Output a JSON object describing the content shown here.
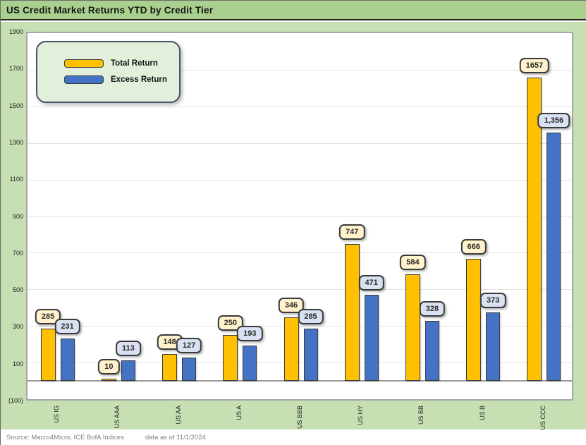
{
  "title": "US Credit Market Returns YTD by Credit Tier",
  "footer": {
    "source": "Source: Macro4Micro, ICE BofA Indices",
    "asof": "data as of 11/1/2024"
  },
  "colors": {
    "title_bar_green": "#A9D08E",
    "body_green": "#C6E0B4",
    "legend_bg": "#E2EFDA",
    "legend_border": "#44546A",
    "total_return_gold": "#FFC000",
    "excess_return_blue": "#4472C4",
    "gold_label_bg": "#FFF2CC",
    "blue_label_bg": "#D9E2F3",
    "plot_border_gray": "#A6A6A6"
  },
  "chart_data": {
    "type": "bar",
    "title": "US Credit Market Returns YTD by Credit Tier",
    "categories": [
      "US IG",
      "US AAA",
      "US AA",
      "US A",
      "US BBB",
      "US HY",
      "US BB",
      "US B",
      "US CCC"
    ],
    "series": [
      {
        "name": "Total Return",
        "color": "#FFC000",
        "label_bg": "#FFF2CC",
        "values": [
          285,
          10,
          148,
          250,
          346,
          747,
          584,
          666,
          1657
        ],
        "labels": [
          "285",
          "10",
          "148",
          "250",
          "346",
          "747",
          "584",
          "666",
          "1657"
        ]
      },
      {
        "name": "Excess Return",
        "color": "#4472C4",
        "label_bg": "#D9E2F3",
        "values": [
          231,
          113,
          127,
          193,
          285,
          471,
          328,
          373,
          1356
        ],
        "labels": [
          "231",
          "113",
          "127",
          "193",
          "285",
          "471",
          "328",
          "373",
          "1,356"
        ]
      }
    ],
    "xlabel": "",
    "ylabel": "",
    "ylim": [
      -100,
      1900
    ],
    "yticks": [
      {
        "value": 1900,
        "label": "1900"
      },
      {
        "value": 1700,
        "label": "1700"
      },
      {
        "value": 1500,
        "label": "1500"
      },
      {
        "value": 1300,
        "label": "1300"
      },
      {
        "value": 1100,
        "label": "1100"
      },
      {
        "value": 900,
        "label": "900"
      },
      {
        "value": 700,
        "label": "700"
      },
      {
        "value": 500,
        "label": "500"
      },
      {
        "value": 300,
        "label": "300"
      },
      {
        "value": 100,
        "label": "100"
      },
      {
        "value": -100,
        "label": "(100)"
      }
    ],
    "grid": true,
    "legend_position": "top-left"
  }
}
